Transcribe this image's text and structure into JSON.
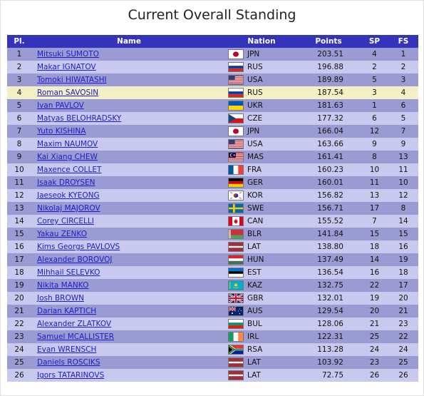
{
  "page": {
    "title": "Current Overall Standing"
  },
  "table": {
    "headers": {
      "pl": "Pl.",
      "name": "Name",
      "nation": "Nation",
      "points": "Points",
      "sp": "SP",
      "fs": "FS"
    },
    "rows": [
      {
        "pl": "1",
        "name": "Mitsuki SUMOTO",
        "nation": "JPN",
        "flag": "jpn-flag-icon",
        "points": "203.51",
        "sp": "4",
        "fs": "1"
      },
      {
        "pl": "2",
        "name": "Makar IGNATOV",
        "nation": "RUS",
        "flag": "rus-flag-icon",
        "points": "196.88",
        "sp": "2",
        "fs": "2"
      },
      {
        "pl": "3",
        "name": "Tomoki HIWATASHI",
        "nation": "USA",
        "flag": "usa-flag-icon",
        "points": "189.89",
        "sp": "5",
        "fs": "3"
      },
      {
        "pl": "4",
        "name": "Roman SAVOSIN",
        "nation": "RUS",
        "flag": "rus-flag-icon",
        "points": "187.54",
        "sp": "3",
        "fs": "4",
        "highlight": true
      },
      {
        "pl": "5",
        "name": "Ivan PAVLOV",
        "nation": "UKR",
        "flag": "ukr-flag-icon",
        "points": "181.63",
        "sp": "1",
        "fs": "6"
      },
      {
        "pl": "6",
        "name": "Matyas BELOHRADSKY",
        "nation": "CZE",
        "flag": "cze-flag-icon",
        "points": "177.32",
        "sp": "6",
        "fs": "5"
      },
      {
        "pl": "7",
        "name": "Yuto KISHINA",
        "nation": "JPN",
        "flag": "jpn-flag-icon",
        "points": "166.04",
        "sp": "12",
        "fs": "7"
      },
      {
        "pl": "8",
        "name": "Maxim NAUMOV",
        "nation": "USA",
        "flag": "usa-flag-icon",
        "points": "163.66",
        "sp": "9",
        "fs": "9"
      },
      {
        "pl": "9",
        "name": "Kai Xiang CHEW",
        "nation": "MAS",
        "flag": "mas-flag-icon",
        "points": "161.41",
        "sp": "8",
        "fs": "13"
      },
      {
        "pl": "10",
        "name": "Maxence COLLET",
        "nation": "FRA",
        "flag": "fra-flag-icon",
        "points": "160.23",
        "sp": "10",
        "fs": "11"
      },
      {
        "pl": "11",
        "name": "Isaak DROYSEN",
        "nation": "GER",
        "flag": "ger-flag-icon",
        "points": "160.01",
        "sp": "11",
        "fs": "10"
      },
      {
        "pl": "12",
        "name": "Jaeseok KYEONG",
        "nation": "KOR",
        "flag": "kor-flag-icon",
        "points": "156.82",
        "sp": "13",
        "fs": "12"
      },
      {
        "pl": "13",
        "name": "Nikolaj MAJOROV",
        "nation": "SWE",
        "flag": "swe-flag-icon",
        "points": "156.71",
        "sp": "17",
        "fs": "8"
      },
      {
        "pl": "14",
        "name": "Corey CIRCELLI",
        "nation": "CAN",
        "flag": "can-flag-icon",
        "points": "155.52",
        "sp": "7",
        "fs": "14"
      },
      {
        "pl": "15",
        "name": "Yakau ZENKO",
        "nation": "BLR",
        "flag": "blr-flag-icon",
        "points": "141.84",
        "sp": "15",
        "fs": "15"
      },
      {
        "pl": "16",
        "name": "Kims Georgs PAVLOVS",
        "nation": "LAT",
        "flag": "lat-flag-icon",
        "points": "138.80",
        "sp": "18",
        "fs": "16"
      },
      {
        "pl": "17",
        "name": "Alexander BOROVOJ",
        "nation": "HUN",
        "flag": "hun-flag-icon",
        "points": "137.49",
        "sp": "14",
        "fs": "19"
      },
      {
        "pl": "18",
        "name": "Mihhail SELEVKO",
        "nation": "EST",
        "flag": "est-flag-icon",
        "points": "136.54",
        "sp": "16",
        "fs": "18"
      },
      {
        "pl": "19",
        "name": "Nikita MANKO",
        "nation": "KAZ",
        "flag": "kaz-flag-icon",
        "points": "132.75",
        "sp": "22",
        "fs": "17"
      },
      {
        "pl": "20",
        "name": "Josh BROWN",
        "nation": "GBR",
        "flag": "gbr-flag-icon",
        "points": "132.01",
        "sp": "19",
        "fs": "20"
      },
      {
        "pl": "21",
        "name": "Darian KAPTICH",
        "nation": "AUS",
        "flag": "aus-flag-icon",
        "points": "129.54",
        "sp": "20",
        "fs": "21"
      },
      {
        "pl": "22",
        "name": "Alexander ZLATKOV",
        "nation": "BUL",
        "flag": "bul-flag-icon",
        "points": "128.06",
        "sp": "21",
        "fs": "23"
      },
      {
        "pl": "23",
        "name": "Samuel MCALLISTER",
        "nation": "IRL",
        "flag": "irl-flag-icon",
        "points": "122.31",
        "sp": "25",
        "fs": "22"
      },
      {
        "pl": "24",
        "name": "Evan WRENSCH",
        "nation": "RSA",
        "flag": "rsa-flag-icon",
        "points": "113.28",
        "sp": "24",
        "fs": "24"
      },
      {
        "pl": "25",
        "name": "Daniels ROSCIKS",
        "nation": "LAT",
        "flag": "lat-flag-icon",
        "points": "103.92",
        "sp": "23",
        "fs": "25"
      },
      {
        "pl": "26",
        "name": "Igors TATARINOVS",
        "nation": "LAT",
        "flag": "lat-flag-icon",
        "points": "72.75",
        "sp": "26",
        "fs": "26"
      }
    ]
  },
  "colors": {
    "header_bg": "#3333bb",
    "row_odd": "#9b9bd3",
    "row_even": "#c9c9ef",
    "row_highlight": "#f3f0c5",
    "link": "#1b1bcc"
  }
}
